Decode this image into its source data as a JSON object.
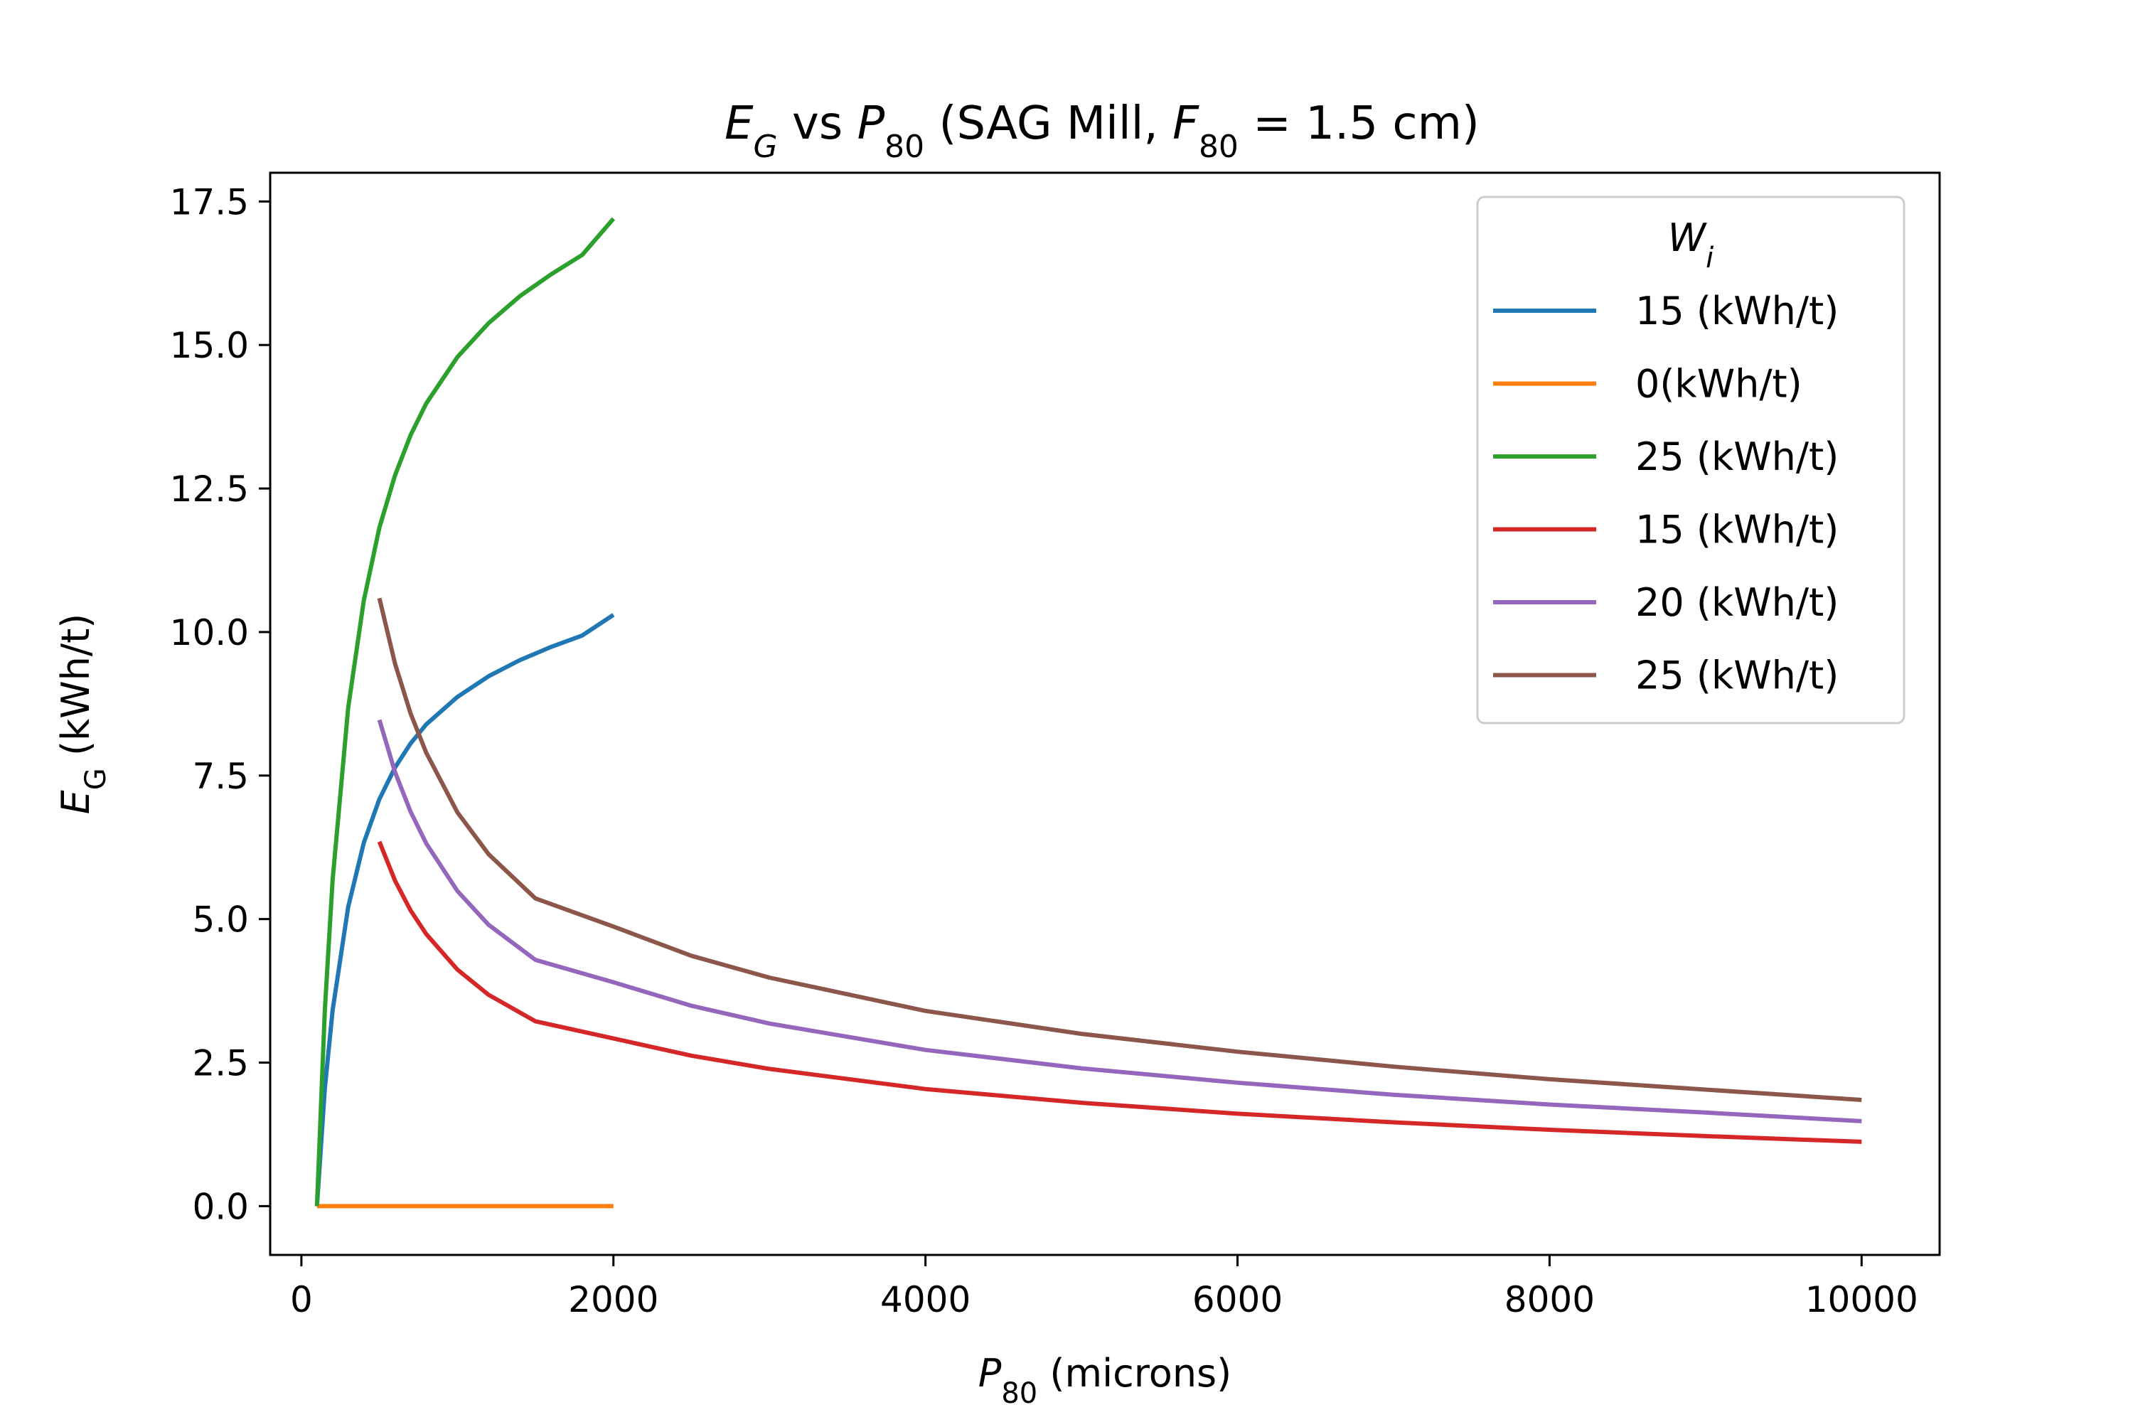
{
  "chart_data": {
    "type": "line",
    "title": "E_G vs P_80 (SAG Mill, F_80 = 1.5 cm)",
    "title_parts": {
      "e": "E",
      "e_sub": "G",
      "vs": " vs ",
      "p": "P",
      "p_sub": "80",
      "paren": " (SAG Mill, ",
      "f": "F",
      "f_sub": "80",
      "rest": " = 1.5 cm)"
    },
    "xlabel": "P_80 (microns)",
    "xlabel_parts": {
      "sym": "P",
      "sub": "80",
      "rest": " (microns)"
    },
    "ylabel": "E_G (kWh/t)",
    "ylabel_parts": {
      "sym": "E",
      "sub": "G",
      "rest": " (kWh/t)"
    },
    "xlim": [
      -200,
      10500
    ],
    "ylim": [
      -0.85,
      18.0
    ],
    "x_ticks": [
      0,
      2000,
      4000,
      6000,
      8000,
      10000
    ],
    "x_tick_labels": [
      "0",
      "2000",
      "4000",
      "6000",
      "8000",
      "10000"
    ],
    "y_ticks": [
      0,
      2.5,
      5,
      7.5,
      10,
      12.5,
      15,
      17.5
    ],
    "y_tick_labels": [
      "0.0",
      "2.5",
      "5.0",
      "7.5",
      "10.0",
      "12.5",
      "15.0",
      "17.5"
    ],
    "grid": false,
    "legend": {
      "placement": "top-right",
      "title_parts": {
        "sym": "W",
        "sub": "i"
      }
    },
    "series": [
      {
        "name": "15 (kWh/t)",
        "color": "#1f77b4",
        "x": [
          100,
          150,
          200,
          300,
          400,
          500,
          600,
          700,
          800,
          1000,
          1200,
          1400,
          1600,
          1800,
          2000
        ],
        "y": [
          0.0,
          2.04,
          3.41,
          5.21,
          6.33,
          7.09,
          7.64,
          8.06,
          8.39,
          8.87,
          9.23,
          9.51,
          9.74,
          9.94,
          10.3
        ]
      },
      {
        "name": "0(kWh/t)",
        "color": "#ff7f0e",
        "x": [
          100,
          2000
        ],
        "y": [
          0.0,
          0.0
        ]
      },
      {
        "name": "25 (kWh/t)",
        "color": "#2ca02c",
        "x": [
          100,
          150,
          200,
          300,
          400,
          500,
          600,
          700,
          800,
          1000,
          1200,
          1400,
          1600,
          1800,
          2000
        ],
        "y": [
          0.0,
          3.4,
          5.68,
          8.68,
          10.55,
          11.82,
          12.73,
          13.43,
          13.98,
          14.79,
          15.38,
          15.85,
          16.23,
          16.57,
          17.2
        ]
      },
      {
        "name": "15 (kWh/t)",
        "color": "#d62728",
        "x": [
          500,
          600,
          700,
          800,
          1000,
          1200,
          1500,
          2000,
          2500,
          3000,
          4000,
          5000,
          6000,
          7000,
          8000,
          9000,
          10000
        ],
        "y": [
          6.35,
          5.67,
          5.15,
          4.74,
          4.12,
          3.68,
          3.22,
          2.92,
          2.62,
          2.39,
          2.04,
          1.8,
          1.61,
          1.46,
          1.33,
          1.22,
          1.12
        ]
      },
      {
        "name": "20 (kWh/t)",
        "color": "#9467bd",
        "x": [
          500,
          600,
          700,
          800,
          1000,
          1200,
          1500,
          2000,
          2500,
          3000,
          4000,
          5000,
          6000,
          7000,
          8000,
          9000,
          10000
        ],
        "y": [
          8.47,
          7.56,
          6.87,
          6.32,
          5.49,
          4.9,
          4.29,
          3.9,
          3.49,
          3.18,
          2.72,
          2.4,
          2.15,
          1.94,
          1.77,
          1.63,
          1.48
        ]
      },
      {
        "name": "25 (kWh/t)",
        "color": "#8c564b",
        "x": [
          500,
          600,
          700,
          800,
          1000,
          1200,
          1500,
          2000,
          2500,
          3000,
          4000,
          5000,
          6000,
          7000,
          8000,
          9000,
          10000
        ],
        "y": [
          10.59,
          9.45,
          8.58,
          7.9,
          6.86,
          6.13,
          5.36,
          4.87,
          4.36,
          3.98,
          3.4,
          3.0,
          2.69,
          2.43,
          2.21,
          2.03,
          1.85
        ]
      }
    ]
  }
}
